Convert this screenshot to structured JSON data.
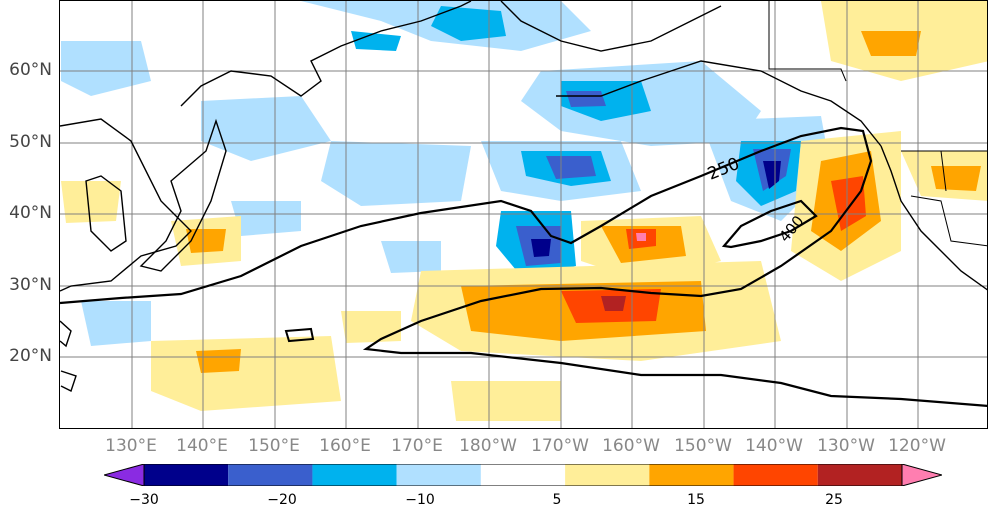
{
  "map": {
    "latitude_labels": [
      "60°N",
      "50°N",
      "40°N",
      "30°N",
      "20°N"
    ],
    "longitude_labels": [
      "130°E",
      "140°E",
      "150°E",
      "160°E",
      "170°E",
      "180°W",
      "170°W",
      "160°W",
      "150°W",
      "140°W",
      "130°W",
      "120°W"
    ],
    "contour_labels": [
      "250",
      "400"
    ]
  },
  "colorbar": {
    "tick_labels": [
      "−30",
      "−20",
      "−10",
      "5",
      "15",
      "25"
    ],
    "colors": [
      "#8a2be2",
      "#00008b",
      "#3a5fcd",
      "#00b2ee",
      "#b0e0ff",
      "#ffffff",
      "#ffee99",
      "#ffa500",
      "#ff4500",
      "#b22222",
      "#ff7eb0"
    ],
    "low_arrow_color": "#8a2be2",
    "high_arrow_color": "#ff7eb0"
  }
}
